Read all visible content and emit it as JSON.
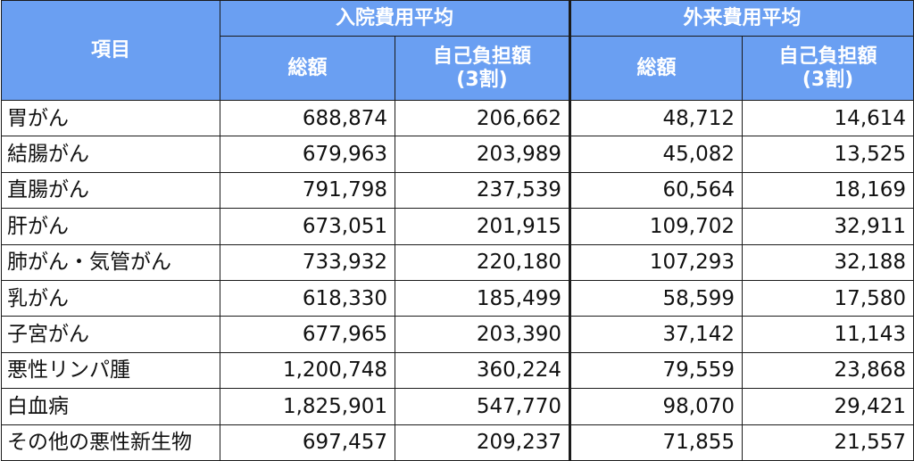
{
  "header": {
    "item_label": "項目",
    "inpatient_label": "入院費用平均",
    "outpatient_label": "外来費用平均",
    "total_label": "総額",
    "copay_label_line1": "自己負担額",
    "copay_label_line2": "(3割)"
  },
  "rows": [
    {
      "item": "胃がん",
      "in_total": "688,874",
      "in_copay": "206,662",
      "out_total": "48,712",
      "out_copay": "14,614"
    },
    {
      "item": "結腸がん",
      "in_total": "679,963",
      "in_copay": "203,989",
      "out_total": "45,082",
      "out_copay": "13,525"
    },
    {
      "item": "直腸がん",
      "in_total": "791,798",
      "in_copay": "237,539",
      "out_total": "60,564",
      "out_copay": "18,169"
    },
    {
      "item": "肝がん",
      "in_total": "673,051",
      "in_copay": "201,915",
      "out_total": "109,702",
      "out_copay": "32,911"
    },
    {
      "item": "肺がん・気管がん",
      "in_total": "733,932",
      "in_copay": "220,180",
      "out_total": "107,293",
      "out_copay": "32,188"
    },
    {
      "item": "乳がん",
      "in_total": "618,330",
      "in_copay": "185,499",
      "out_total": "58,599",
      "out_copay": "17,580"
    },
    {
      "item": "子宮がん",
      "in_total": "677,965",
      "in_copay": "203,390",
      "out_total": "37,142",
      "out_copay": "11,143"
    },
    {
      "item": "悪性リンパ腫",
      "in_total": "1,200,748",
      "in_copay": "360,224",
      "out_total": "79,559",
      "out_copay": "23,868"
    },
    {
      "item": "白血病",
      "in_total": "1,825,901",
      "in_copay": "547,770",
      "out_total": "98,070",
      "out_copay": "29,421"
    },
    {
      "item": "その他の悪性新生物",
      "in_total": "697,457",
      "in_copay": "209,237",
      "out_total": "71,855",
      "out_copay": "21,557"
    }
  ],
  "colors": {
    "header_bg": "#6a9ff2",
    "header_text": "#ffffff",
    "border": "#1a1a1a"
  }
}
